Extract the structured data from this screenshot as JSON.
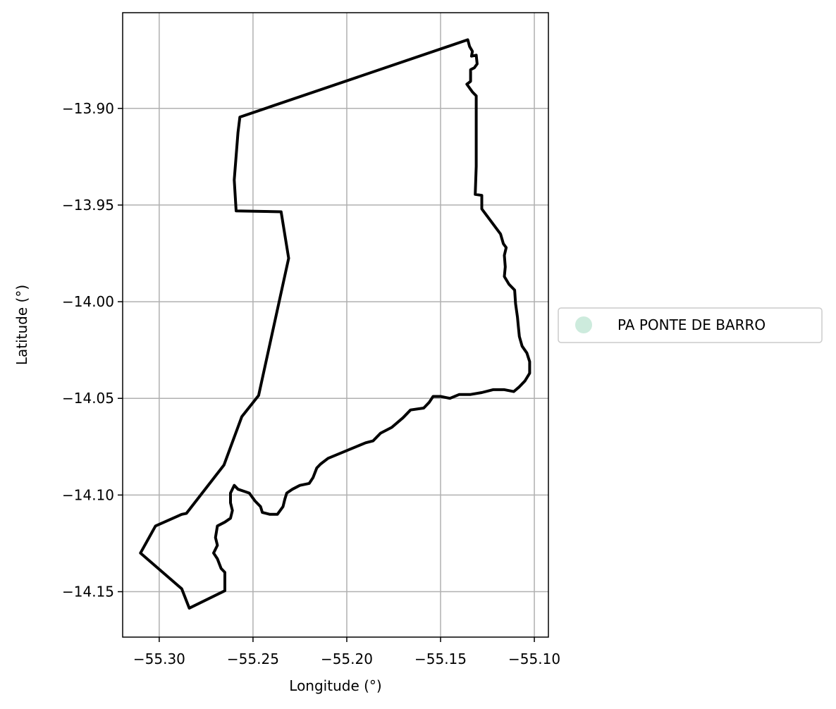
{
  "chart_data": {
    "type": "map",
    "xlabel": "Longitude (°)",
    "ylabel": "Latitude (°)",
    "xlim": [
      -55.3195,
      -55.0925
    ],
    "ylim": [
      -14.1735,
      -13.8505
    ],
    "xticks": [
      -55.3,
      -55.25,
      -55.2,
      -55.15,
      -55.1
    ],
    "xtick_labels": [
      "−55.30",
      "−55.25",
      "−55.20",
      "−55.15",
      "−55.10"
    ],
    "yticks": [
      -13.9,
      -13.95,
      -14.0,
      -14.05,
      -14.1,
      -14.15
    ],
    "ytick_labels": [
      "−13.90",
      "−13.95",
      "−14.00",
      "−14.05",
      "−14.10",
      "−14.15"
    ],
    "grid": true,
    "legend_position": "outside-right",
    "legend": [
      {
        "label": "PA PONTE DE BARRO",
        "marker": "circle",
        "color": "#cdebdd"
      }
    ],
    "boundary_color": "#000000",
    "boundary": [
      [
        -55.1355,
        -13.8645
      ],
      [
        -55.1345,
        -13.868
      ],
      [
        -55.133,
        -13.8705
      ],
      [
        -55.1335,
        -13.873
      ],
      [
        -55.131,
        -13.8725
      ],
      [
        -55.1305,
        -13.877
      ],
      [
        -55.132,
        -13.879
      ],
      [
        -55.134,
        -13.88
      ],
      [
        -55.134,
        -13.886
      ],
      [
        -55.136,
        -13.8875
      ],
      [
        -55.133,
        -13.8915
      ],
      [
        -55.131,
        -13.8935
      ],
      [
        -55.131,
        -13.93
      ],
      [
        -55.1315,
        -13.9445
      ],
      [
        -55.128,
        -13.945
      ],
      [
        -55.128,
        -13.952
      ],
      [
        -55.118,
        -13.965
      ],
      [
        -55.1165,
        -13.97
      ],
      [
        -55.115,
        -13.972
      ],
      [
        -55.116,
        -13.976
      ],
      [
        -55.1155,
        -13.982
      ],
      [
        -55.116,
        -13.987
      ],
      [
        -55.1135,
        -13.991
      ],
      [
        -55.1105,
        -13.994
      ],
      [
        -55.11,
        -14.001
      ],
      [
        -55.109,
        -14.008
      ],
      [
        -55.1085,
        -14.013
      ],
      [
        -55.108,
        -14.018
      ],
      [
        -55.1065,
        -14.023
      ],
      [
        -55.104,
        -14.0265
      ],
      [
        -55.1025,
        -14.031
      ],
      [
        -55.1025,
        -14.037
      ],
      [
        -55.105,
        -14.041
      ],
      [
        -55.108,
        -14.044
      ],
      [
        -55.111,
        -14.0465
      ],
      [
        -55.116,
        -14.0455
      ],
      [
        -55.122,
        -14.0455
      ],
      [
        -55.128,
        -14.047
      ],
      [
        -55.134,
        -14.048
      ],
      [
        -55.14,
        -14.048
      ],
      [
        -55.145,
        -14.05
      ],
      [
        -55.15,
        -14.049
      ],
      [
        -55.154,
        -14.049
      ],
      [
        -55.156,
        -14.052
      ],
      [
        -55.159,
        -14.055
      ],
      [
        -55.166,
        -14.056
      ],
      [
        -55.17,
        -14.06
      ],
      [
        -55.176,
        -14.065
      ],
      [
        -55.182,
        -14.068
      ],
      [
        -55.186,
        -14.072
      ],
      [
        -55.19,
        -14.073
      ],
      [
        -55.195,
        -14.075
      ],
      [
        -55.2,
        -14.077
      ],
      [
        -55.205,
        -14.079
      ],
      [
        -55.21,
        -14.081
      ],
      [
        -55.214,
        -14.084
      ],
      [
        -55.216,
        -14.086
      ],
      [
        -55.218,
        -14.091
      ],
      [
        -55.22,
        -14.094
      ],
      [
        -55.225,
        -14.095
      ],
      [
        -55.229,
        -14.097
      ],
      [
        -55.232,
        -14.099
      ],
      [
        -55.233,
        -14.102
      ],
      [
        -55.234,
        -14.106
      ],
      [
        -55.237,
        -14.11
      ],
      [
        -55.241,
        -14.11
      ],
      [
        -55.245,
        -14.109
      ],
      [
        -55.246,
        -14.106
      ],
      [
        -55.249,
        -14.103
      ],
      [
        -55.252,
        -14.099
      ],
      [
        -55.255,
        -14.098
      ],
      [
        -55.258,
        -14.097
      ],
      [
        -55.26,
        -14.095
      ],
      [
        -55.262,
        -14.099
      ],
      [
        -55.262,
        -14.104
      ],
      [
        -55.261,
        -14.108
      ],
      [
        -55.262,
        -14.112
      ],
      [
        -55.265,
        -14.114
      ],
      [
        -55.269,
        -14.116
      ],
      [
        -55.27,
        -14.122
      ],
      [
        -55.269,
        -14.126
      ],
      [
        -55.271,
        -14.13
      ],
      [
        -55.269,
        -14.133
      ],
      [
        -55.267,
        -14.138
      ],
      [
        -55.265,
        -14.14
      ],
      [
        -55.265,
        -14.148
      ],
      [
        -55.265,
        -14.1495
      ],
      [
        -55.284,
        -14.1585
      ],
      [
        -55.288,
        -14.1485
      ],
      [
        -55.31,
        -14.13
      ],
      [
        -55.302,
        -14.116
      ],
      [
        -55.288,
        -14.11
      ],
      [
        -55.2855,
        -14.1095
      ],
      [
        -55.2655,
        -14.0845
      ],
      [
        -55.256,
        -14.0595
      ],
      [
        -55.247,
        -14.0485
      ],
      [
        -55.231,
        -13.9775
      ],
      [
        -55.235,
        -13.9535
      ],
      [
        -55.259,
        -13.953
      ],
      [
        -55.26,
        -13.937
      ],
      [
        -55.258,
        -13.9125
      ],
      [
        -55.257,
        -13.9045
      ],
      [
        -55.1355,
        -13.8645
      ]
    ]
  }
}
